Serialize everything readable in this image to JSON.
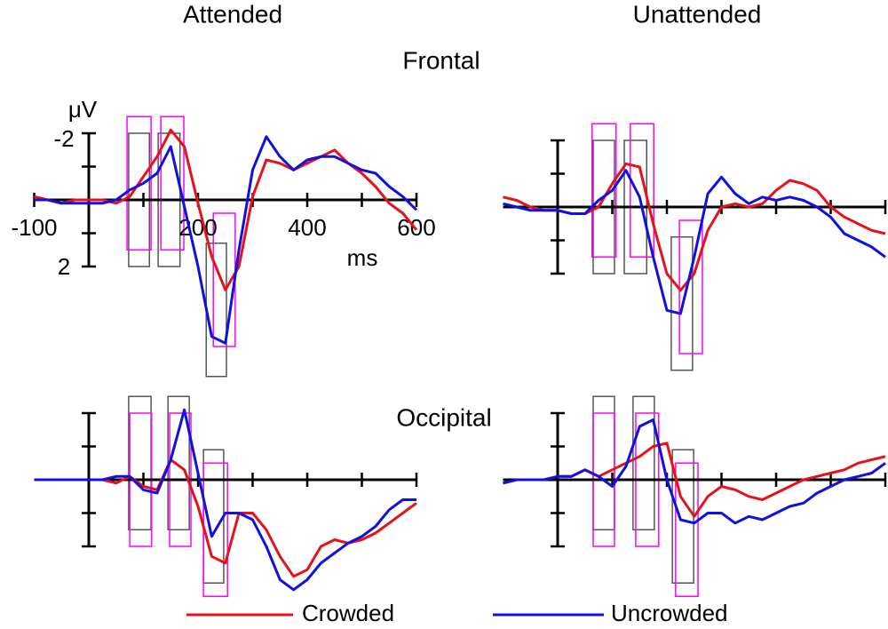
{
  "column_titles": [
    "Attended",
    "Unattended"
  ],
  "row_titles": [
    "Frontal",
    "Occipital"
  ],
  "chart_data": [
    {
      "type": "line",
      "y_label": "μV",
      "x_label": "ms",
      "x": [
        -100,
        -75,
        -50,
        -25,
        0,
        25,
        50,
        75,
        100,
        125,
        150,
        175,
        200,
        225,
        250,
        275,
        300,
        325,
        350,
        375,
        400,
        425,
        450,
        475,
        500,
        525,
        550,
        575,
        600
      ],
      "xlim": [
        -100,
        600
      ],
      "ylim": [
        -3,
        5.5
      ],
      "y_inverted": true,
      "xticks": [
        -100,
        200,
        400,
        600
      ],
      "xminor": [
        0,
        100,
        300,
        500
      ],
      "yticks": [
        -2,
        2
      ],
      "yminor": [
        -1,
        0,
        1
      ],
      "series": [
        {
          "name": "Crowded",
          "color": "#e8111a",
          "values": [
            -0.1,
            0,
            0.1,
            0,
            0,
            0,
            0.1,
            -0.1,
            -0.7,
            -1.3,
            -2.1,
            -1.6,
            0.1,
            1.7,
            2.7,
            2.0,
            -0.1,
            -1.2,
            -1.1,
            -0.9,
            -1.1,
            -1.3,
            -1.5,
            -1.1,
            -0.8,
            -0.4,
            0.1,
            0.4,
            0.9
          ]
        },
        {
          "name": "Uncrowded",
          "color": "#1010e0",
          "values": [
            0,
            0,
            0.1,
            0.1,
            0.1,
            0.1,
            0,
            -0.3,
            -0.5,
            -0.8,
            -1.6,
            0.2,
            2.0,
            4.1,
            4.3,
            1.5,
            -0.9,
            -1.9,
            -1.3,
            -0.9,
            -1.2,
            -1.3,
            -1.3,
            -1.1,
            -0.9,
            -0.8,
            -0.4,
            -0.1,
            0.3
          ]
        }
      ],
      "windows": [
        {
          "x": [
            73,
            111
          ],
          "y": [
            -2,
            2
          ],
          "color": "#555555"
        },
        {
          "x": [
            70,
            114
          ],
          "y": [
            -2.5,
            1.5
          ],
          "color": "#ff00ff"
        },
        {
          "x": [
            127,
            167
          ],
          "y": [
            -2,
            2
          ],
          "color": "#555555"
        },
        {
          "x": [
            132,
            174
          ],
          "y": [
            -2.5,
            1.5
          ],
          "color": "#ff00ff"
        },
        {
          "x": [
            215,
            252
          ],
          "y": [
            1.3,
            5.3
          ],
          "color": "#555555"
        },
        {
          "x": [
            228,
            268
          ],
          "y": [
            0.4,
            4.4
          ],
          "color": "#ff00ff"
        }
      ]
    },
    {
      "type": "line",
      "x": [
        -100,
        -75,
        -50,
        -25,
        0,
        25,
        50,
        75,
        100,
        125,
        150,
        175,
        200,
        225,
        250,
        275,
        300,
        325,
        350,
        375,
        400,
        425,
        450,
        475,
        500,
        525,
        550,
        575,
        600
      ],
      "xlim": [
        -100,
        600
      ],
      "ylim": [
        -3,
        5.5
      ],
      "y_inverted": true,
      "xminor": [
        0,
        100,
        200,
        300,
        400,
        500,
        600
      ],
      "yminor": [
        -2,
        -1,
        1,
        2
      ],
      "series": [
        {
          "name": "Crowded",
          "color": "#e8111a",
          "values": [
            -0.3,
            -0.2,
            0,
            0.1,
            0.1,
            0.2,
            0.2,
            0,
            -0.7,
            -1.3,
            -1.2,
            0.5,
            2.0,
            2.5,
            2.0,
            0.7,
            0,
            -0.1,
            0,
            -0.1,
            -0.5,
            -0.8,
            -0.7,
            -0.5,
            0,
            0.3,
            0.5,
            0.7,
            0.8
          ]
        },
        {
          "name": "Uncrowded",
          "color": "#1010e0",
          "values": [
            -0.1,
            0,
            0.1,
            0.1,
            0.1,
            0.2,
            0.2,
            -0.2,
            -0.5,
            -1.1,
            -0.3,
            1.5,
            3.1,
            3.2,
            1.5,
            -0.4,
            -0.9,
            -0.4,
            -0.1,
            -0.3,
            -0.2,
            -0.3,
            -0.2,
            0,
            0.3,
            0.8,
            1.0,
            1.2,
            1.5
          ]
        }
      ],
      "windows": [
        {
          "x": [
            65,
            104
          ],
          "y": [
            -2,
            2
          ],
          "color": "#555555"
        },
        {
          "x": [
            63,
            107
          ],
          "y": [
            -2.5,
            1.5
          ],
          "color": "#ff00ff"
        },
        {
          "x": [
            122,
            163
          ],
          "y": [
            -2,
            2
          ],
          "color": "#555555"
        },
        {
          "x": [
            133,
            176
          ],
          "y": [
            -2.5,
            1.5
          ],
          "color": "#ff00ff"
        },
        {
          "x": [
            208,
            247
          ],
          "y": [
            0.9,
            4.9
          ],
          "color": "#555555"
        },
        {
          "x": [
            223,
            265
          ],
          "y": [
            0.4,
            4.4
          ],
          "color": "#ff00ff"
        }
      ]
    },
    {
      "type": "line",
      "x": [
        -100,
        -75,
        -50,
        -25,
        0,
        25,
        50,
        75,
        100,
        125,
        150,
        175,
        200,
        225,
        250,
        275,
        300,
        325,
        350,
        375,
        400,
        425,
        450,
        475,
        500,
        525,
        550,
        575,
        600
      ],
      "xlim": [
        -100,
        600
      ],
      "ylim": [
        -3,
        4
      ],
      "y_inverted": true,
      "xminor": [
        0,
        100,
        200,
        300,
        400,
        500,
        600
      ],
      "yminor": [
        -2,
        -1,
        1,
        2
      ],
      "series": [
        {
          "name": "Crowded",
          "color": "#e8111a",
          "values": [
            0,
            0,
            0,
            0,
            0,
            0,
            0.1,
            -0.1,
            0.2,
            0.3,
            -0.6,
            -0.3,
            0.8,
            2.3,
            2.5,
            1.0,
            1.0,
            1.5,
            2.3,
            2.9,
            2.7,
            2.0,
            1.8,
            1.9,
            1.8,
            1.6,
            1.3,
            1.0,
            0.7
          ]
        },
        {
          "name": "Uncrowded",
          "color": "#1010e0",
          "values": [
            0,
            0,
            0,
            0,
            0,
            0,
            -0.1,
            -0.1,
            0.3,
            0.4,
            -0.6,
            -2.1,
            -0.2,
            1.7,
            1.0,
            1.0,
            1.2,
            2.0,
            3.0,
            3.3,
            3.0,
            2.5,
            2.2,
            1.9,
            1.7,
            1.4,
            0.9,
            0.6,
            0.6
          ]
        }
      ],
      "windows": [
        {
          "x": [
            73,
            114
          ],
          "y": [
            -2.5,
            1.5
          ],
          "color": "#555555"
        },
        {
          "x": [
            75,
            115
          ],
          "y": [
            -2,
            2
          ],
          "color": "#ff00ff"
        },
        {
          "x": [
            145,
            184
          ],
          "y": [
            -2.5,
            1.5
          ],
          "color": "#555555"
        },
        {
          "x": [
            148,
            187
          ],
          "y": [
            -2,
            2
          ],
          "color": "#ff00ff"
        },
        {
          "x": [
            210,
            247
          ],
          "y": [
            -0.9,
            3.1
          ],
          "color": "#555555"
        },
        {
          "x": [
            210,
            254
          ],
          "y": [
            -0.5,
            3.5
          ],
          "color": "#ff00ff"
        }
      ]
    },
    {
      "type": "line",
      "x": [
        -100,
        -75,
        -50,
        -25,
        0,
        25,
        50,
        75,
        100,
        125,
        150,
        175,
        200,
        225,
        250,
        275,
        300,
        325,
        350,
        375,
        400,
        425,
        450,
        475,
        500,
        525,
        550,
        575,
        600
      ],
      "xlim": [
        -100,
        600
      ],
      "ylim": [
        -3,
        4
      ],
      "y_inverted": true,
      "xminor": [
        0,
        100,
        200,
        300,
        400,
        500,
        600
      ],
      "yminor": [
        -2,
        -1,
        1,
        2
      ],
      "series": [
        {
          "name": "Crowded",
          "color": "#e8111a",
          "values": [
            0.1,
            0,
            0,
            0,
            -0.1,
            -0.1,
            -0.3,
            -0.1,
            -0.3,
            -0.5,
            -0.7,
            -1.0,
            -1.1,
            0.5,
            1.1,
            0.5,
            0.2,
            0.3,
            0.5,
            0.6,
            0.4,
            0.2,
            0,
            -0.1,
            -0.2,
            -0.3,
            -0.5,
            -0.6,
            -0.7
          ]
        },
        {
          "name": "Uncrowded",
          "color": "#1010e0",
          "values": [
            0.1,
            0,
            0,
            0,
            -0.1,
            -0.1,
            -0.3,
            -0.1,
            0.2,
            -0.4,
            -1.6,
            -1.8,
            0,
            1.2,
            1.3,
            1.0,
            1.0,
            1.3,
            1.1,
            1.2,
            1.0,
            0.8,
            0.7,
            0.4,
            0.2,
            0,
            -0.1,
            -0.2,
            -0.5
          ]
        }
      ],
      "windows": [
        {
          "x": [
            65,
            104
          ],
          "y": [
            -2.5,
            1.5
          ],
          "color": "#555555"
        },
        {
          "x": [
            65,
            104
          ],
          "y": [
            -2,
            2
          ],
          "color": "#ff00ff"
        },
        {
          "x": [
            138,
            177
          ],
          "y": [
            -2.5,
            1.5
          ],
          "color": "#555555"
        },
        {
          "x": [
            143,
            185
          ],
          "y": [
            -2,
            2
          ],
          "color": "#ff00ff"
        },
        {
          "x": [
            210,
            249
          ],
          "y": [
            -0.9,
            3.1
          ],
          "color": "#555555"
        },
        {
          "x": [
            216,
            257
          ],
          "y": [
            -0.5,
            3.5
          ],
          "color": "#ff00ff"
        }
      ]
    }
  ]
}
